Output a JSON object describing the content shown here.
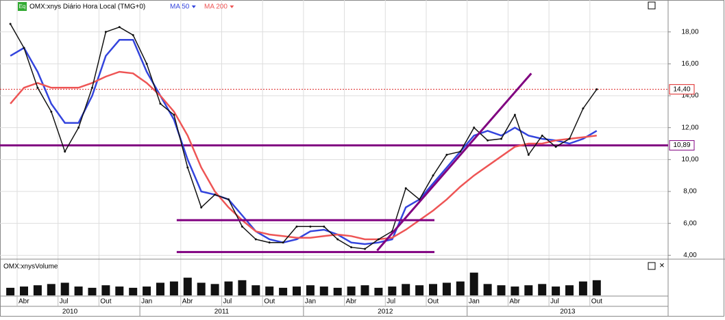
{
  "chart_data": {
    "type": "line",
    "logo": "Eq",
    "title": "OMX:xnys Diário Hora Local (TMG+0)",
    "categories": [
      null,
      "Abr",
      null,
      null,
      "Jul",
      null,
      null,
      "Out",
      null,
      null,
      "Jan",
      null,
      null,
      "Abr",
      null,
      null,
      "Jul",
      null,
      null,
      "Out",
      null,
      null,
      "Jan",
      null,
      null,
      "Abr",
      null,
      null,
      "Jul",
      null,
      null,
      "Out",
      null,
      null,
      "Jan",
      null,
      null,
      "Abr",
      null,
      null,
      "Jul",
      null,
      null,
      "Out"
    ],
    "years": [
      "2010",
      "2011",
      "2012",
      "2013"
    ],
    "price": {
      "color": "#111111",
      "values": [
        18.5,
        17.0,
        14.5,
        13.0,
        10.5,
        12.0,
        14.5,
        18.0,
        18.3,
        17.8,
        16.0,
        13.5,
        12.8,
        9.5,
        7.0,
        7.8,
        7.5,
        5.8,
        5.0,
        4.8,
        4.8,
        5.8,
        5.8,
        5.8,
        5.0,
        4.5,
        4.4,
        5.0,
        5.5,
        8.2,
        7.5,
        9.0,
        10.3,
        10.5,
        12.0,
        11.2,
        11.3,
        12.8,
        10.3,
        11.5,
        10.8,
        11.3,
        13.2,
        14.4
      ]
    },
    "series": [
      {
        "name": "MA 50",
        "color": "#3344dd",
        "values": [
          16.5,
          17.0,
          15.5,
          13.5,
          12.3,
          12.3,
          14.0,
          16.5,
          17.5,
          17.5,
          15.5,
          14.0,
          12.5,
          10.0,
          8.0,
          7.8,
          7.5,
          6.5,
          5.5,
          5.0,
          4.8,
          5.0,
          5.5,
          5.6,
          5.3,
          4.8,
          4.7,
          4.8,
          5.0,
          7.0,
          7.5,
          8.5,
          9.5,
          10.5,
          11.5,
          11.8,
          11.5,
          12.0,
          11.5,
          11.3,
          11.2,
          11.0,
          11.3,
          11.8
        ]
      },
      {
        "name": "MA 200",
        "color": "#ee5555",
        "values": [
          13.5,
          14.5,
          14.8,
          14.5,
          14.5,
          14.5,
          14.8,
          15.2,
          15.5,
          15.4,
          14.8,
          14.0,
          13.0,
          11.5,
          9.5,
          8.0,
          7.0,
          6.2,
          5.5,
          5.3,
          5.2,
          5.1,
          5.1,
          5.2,
          5.3,
          5.2,
          5.0,
          5.0,
          5.1,
          5.6,
          6.2,
          6.8,
          7.5,
          8.3,
          9.0,
          9.6,
          10.2,
          10.8,
          11.0,
          11.0,
          11.2,
          11.3,
          11.4,
          11.5
        ]
      }
    ],
    "hlines": [
      {
        "value": 14.4,
        "label": "14,40",
        "color": "#dd2222"
      },
      {
        "value": 10.89,
        "label": "10,89",
        "color": "#800080"
      }
    ],
    "trendlines": [
      {
        "x": [
          12.2,
          31.1
        ],
        "y": [
          6.2,
          6.2
        ],
        "color": "#800080"
      },
      {
        "x": [
          12.2,
          31.1
        ],
        "y": [
          4.2,
          4.2
        ],
        "color": "#800080"
      },
      {
        "x": [
          26.9,
          38.2
        ],
        "y": [
          4.3,
          15.4
        ],
        "color": "#800080"
      }
    ],
    "ylim": [
      3.8,
      20.0
    ],
    "yticks": [
      {
        "value": 4,
        "label": "4,00"
      },
      {
        "value": 6,
        "label": "6,00"
      },
      {
        "value": 8,
        "label": "8,00"
      },
      {
        "value": 10,
        "label": "10,00"
      },
      {
        "value": 12,
        "label": "12,00"
      },
      {
        "value": 14,
        "label": "14,00"
      },
      {
        "value": 16,
        "label": "16,00"
      },
      {
        "value": 18,
        "label": "18,00"
      }
    ],
    "grid": true,
    "volume": {
      "title": "OMX:xnysVolume",
      "color": "#111111",
      "vlim": [
        0,
        100
      ],
      "values": [
        30,
        35,
        40,
        45,
        50,
        35,
        30,
        40,
        35,
        30,
        35,
        50,
        55,
        70,
        50,
        45,
        55,
        60,
        40,
        35,
        30,
        35,
        40,
        35,
        30,
        35,
        40,
        30,
        35,
        45,
        40,
        45,
        50,
        55,
        90,
        45,
        40,
        35,
        40,
        45,
        35,
        40,
        55,
        60
      ]
    }
  }
}
